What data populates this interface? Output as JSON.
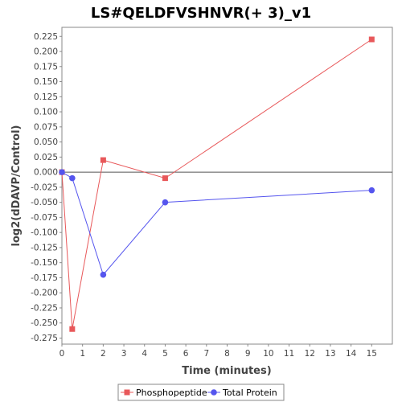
{
  "chart_data": {
    "type": "line",
    "title": "LS#QELDFVSHNVR(+ 3)_v1",
    "xlabel": "Time (minutes)",
    "ylabel": "log2(dDAVP/Control)",
    "xlim": [
      0,
      16
    ],
    "ylim": [
      -0.285,
      0.24
    ],
    "x_ticks": [
      0,
      1,
      2,
      3,
      4,
      5,
      6,
      7,
      8,
      9,
      10,
      11,
      12,
      13,
      14,
      15
    ],
    "y_ticks": [
      0.225,
      0.2,
      0.175,
      0.15,
      0.125,
      0.1,
      0.075,
      0.05,
      0.025,
      0.0,
      -0.025,
      -0.05,
      -0.075,
      -0.1,
      -0.125,
      -0.15,
      -0.175,
      -0.2,
      -0.225,
      -0.25,
      -0.275
    ],
    "y_tick_labels": [
      "0.225",
      "0.200",
      "0.175",
      "0.150",
      "0.125",
      "0.100",
      "0.075",
      "0.050",
      "0.025",
      "0.000",
      "-0.025",
      "-0.050",
      "-0.075",
      "-0.100",
      "-0.125",
      "-0.150",
      "-0.175",
      "-0.200",
      "-0.225",
      "-0.250",
      "-0.275"
    ],
    "grid": false,
    "zero_line": true,
    "legend_position": "bottom",
    "series": [
      {
        "name": "Phosphopeptide",
        "color": "#e8585a",
        "marker": "square",
        "x": [
          0,
          0.5,
          2,
          5,
          15
        ],
        "y": [
          0.0,
          -0.26,
          0.02,
          -0.01,
          0.22
        ]
      },
      {
        "name": "Total Protein",
        "color": "#5555ee",
        "marker": "circle",
        "x": [
          0,
          0.5,
          2,
          5,
          15
        ],
        "y": [
          0.0,
          -0.01,
          -0.17,
          -0.05,
          -0.03
        ]
      }
    ]
  }
}
